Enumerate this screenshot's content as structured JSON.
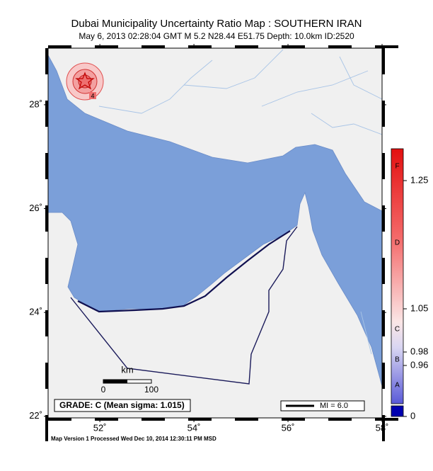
{
  "header": {
    "title": "Dubai Municipality Uncertainty Ratio Map : SOUTHERN IRAN",
    "subtitle": "May  6, 2013 02:28:04 GMT   M 5.2   N28.44 E51.75   Depth: 10.0km   ID:2520"
  },
  "map": {
    "lonlim": [
      50.9,
      58
    ],
    "latlim": [
      21.97,
      29.09
    ],
    "lon_ticks": [
      {
        "value": 52,
        "label": "52˚"
      },
      {
        "value": 54,
        "label": "54˚"
      },
      {
        "value": 56,
        "label": "56˚"
      },
      {
        "value": 58,
        "label": "58˚"
      }
    ],
    "lat_ticks": [
      {
        "value": 28,
        "label": "28˚"
      },
      {
        "value": 26,
        "label": "26˚"
      },
      {
        "value": 24,
        "label": "24˚"
      },
      {
        "value": 22,
        "label": "22˚"
      }
    ],
    "contour_label": "4",
    "scale_bar": {
      "unit": "km",
      "labels": [
        "0",
        "100"
      ]
    },
    "grade_box": "GRADE: C (Mean sigma: 1.015)",
    "mi_legend": "MI = 6.0"
  },
  "colorbar": {
    "labels": [
      "1.25",
      "1.05",
      "0.98",
      "0.96",
      "0"
    ],
    "grades": [
      "F",
      "D",
      "C",
      "B",
      "A"
    ]
  },
  "footer": "Map Version 1 Processed Wed Dec 10, 2014 12:30:11 PM MSD"
}
